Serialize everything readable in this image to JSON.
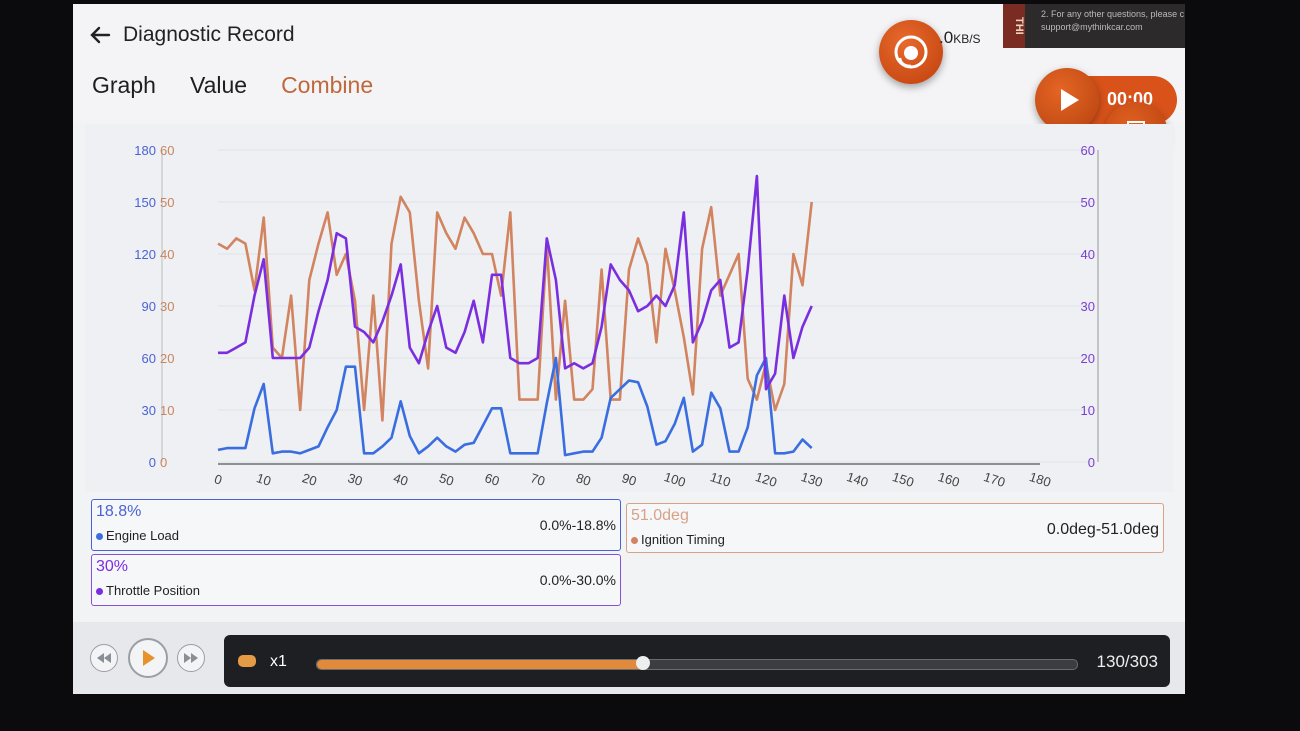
{
  "header": {
    "title": "Diagnostic Record",
    "speed_value": ".0",
    "speed_unit": "KB/S",
    "banner_line1": "2. For any other questions, please c",
    "banner_line2": "support@mythinkcar.com",
    "banner_brand": "THI",
    "record_time": "00:00"
  },
  "tabs": [
    {
      "label": "Graph",
      "active": false
    },
    {
      "label": "Value",
      "active": false
    },
    {
      "label": "Combine",
      "active": true
    }
  ],
  "chart_data": {
    "type": "line",
    "xlim": [
      0,
      180
    ],
    "x_ticks": [
      0,
      10,
      20,
      30,
      40,
      50,
      60,
      70,
      80,
      90,
      100,
      110,
      120,
      130,
      140,
      150,
      160,
      170,
      180
    ],
    "y_axes": {
      "left_outer": {
        "ticks": [
          0,
          30,
          60,
          90,
          120,
          150,
          180
        ],
        "color": "#4a62d6",
        "range": [
          0,
          180
        ]
      },
      "left_inner": {
        "ticks": [
          0,
          10,
          20,
          30,
          40,
          50,
          60
        ],
        "color": "#c8845e",
        "range": [
          0,
          60
        ]
      },
      "right": {
        "ticks": [
          0,
          10,
          20,
          30,
          40,
          50,
          60
        ],
        "color": "#7b3fd2",
        "range": [
          0,
          60
        ]
      }
    },
    "x": [
      0,
      2,
      4,
      6,
      8,
      10,
      12,
      14,
      16,
      18,
      20,
      22,
      24,
      26,
      28,
      30,
      32,
      34,
      36,
      38,
      40,
      42,
      44,
      46,
      48,
      50,
      52,
      54,
      56,
      58,
      60,
      62,
      64,
      66,
      68,
      70,
      72,
      74,
      76,
      78,
      80,
      82,
      84,
      86,
      88,
      90,
      92,
      94,
      96,
      98,
      100,
      102,
      104,
      106,
      108,
      110,
      112,
      114,
      116,
      118,
      120,
      122,
      124,
      126,
      128,
      130
    ],
    "series": [
      {
        "name": "Engine Load",
        "color": "#3a6ee0",
        "axis": "left_outer",
        "values": [
          7,
          8,
          8,
          8,
          31,
          45,
          5,
          6,
          6,
          5,
          7,
          9,
          20,
          30,
          55,
          55,
          5,
          5,
          9,
          14,
          35,
          15,
          5,
          9,
          14,
          9,
          6,
          10,
          11,
          21,
          31,
          31,
          5,
          5,
          5,
          5,
          34,
          60,
          4,
          5,
          6,
          6,
          14,
          37,
          42,
          47,
          46,
          32,
          10,
          12,
          22,
          37,
          6,
          10,
          40,
          31,
          6,
          6,
          20,
          50,
          60,
          5,
          5,
          6,
          13,
          8
        ]
      },
      {
        "name": "Ignition Timing",
        "color": "#d1845f",
        "axis": "left_inner",
        "values": [
          42,
          41,
          43,
          42,
          33,
          47,
          22,
          20,
          32,
          10,
          35,
          42,
          48,
          36,
          40,
          31,
          10,
          32,
          8,
          42,
          51,
          48,
          31,
          18,
          48,
          44,
          41,
          47,
          44,
          40,
          40,
          32,
          48,
          12,
          12,
          12,
          42,
          12,
          31,
          12,
          12,
          14,
          37,
          12,
          12,
          37,
          43,
          38,
          23,
          41,
          33,
          24,
          13,
          41,
          49,
          32,
          36,
          40,
          16,
          12,
          19,
          10,
          15,
          40,
          34,
          50
        ]
      },
      {
        "name": "Throttle Position",
        "color": "#7a2ee0",
        "axis": "right",
        "values": [
          21,
          21,
          22,
          23,
          32,
          39,
          20,
          20,
          20,
          20,
          22,
          29,
          35,
          44,
          43,
          26,
          25,
          23,
          27,
          32,
          38,
          22,
          19,
          25,
          30,
          22,
          21,
          25,
          31,
          23,
          36,
          36,
          20,
          19,
          19,
          20,
          43,
          35,
          18,
          19,
          18,
          19,
          26,
          38,
          35,
          33,
          29,
          30,
          32,
          30,
          34,
          48,
          23,
          27,
          33,
          35,
          22,
          23,
          37,
          55,
          14,
          17,
          32,
          20,
          26,
          30
        ]
      }
    ],
    "grid": true
  },
  "legends": [
    {
      "value": "18.8%",
      "name": "Engine Load",
      "range": "0.0%-18.8%",
      "color": "#3a6ee0",
      "border": "#4a62d6"
    },
    {
      "value": "51.0deg",
      "name": "Ignition Timing",
      "range": "0.0deg-51.0deg",
      "color": "#d1845f",
      "border": "#d9a185"
    },
    {
      "value": "30%",
      "name": "Throttle Position",
      "range": "0.0%-30.0%",
      "color": "#7a2ee0",
      "border": "#8a4fd6"
    }
  ],
  "player": {
    "speed_label": "x1",
    "progress_fraction": 0.429,
    "counter": "130/303"
  }
}
